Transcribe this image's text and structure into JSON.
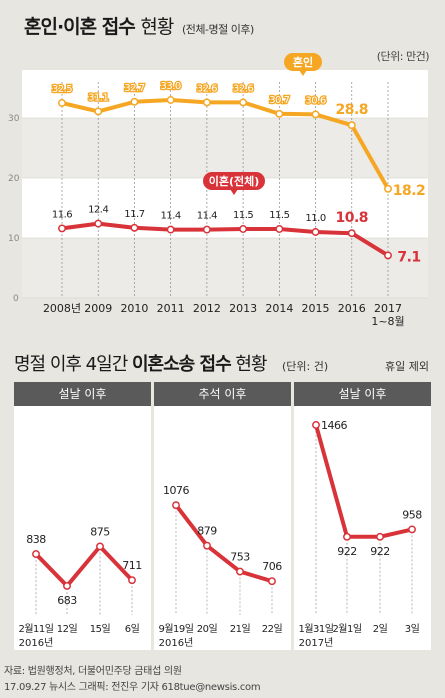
{
  "header": {
    "title_bold": "혼인·이혼 접수",
    "title_light": "현황",
    "subtitle": "(전체-명절 이후)",
    "unit": "(단위: 만건)"
  },
  "chart_data": [
    {
      "type": "line",
      "categories": [
        "2008년",
        "2009",
        "2010",
        "2011",
        "2012",
        "2013",
        "2014",
        "2015",
        "2016",
        "2017 1~8월"
      ],
      "category_lines": [
        [
          "2008년"
        ],
        [
          "2009"
        ],
        [
          "2010"
        ],
        [
          "2011"
        ],
        [
          "2012"
        ],
        [
          "2013"
        ],
        [
          "2014"
        ],
        [
          "2015"
        ],
        [
          "2016"
        ],
        [
          "2017",
          "1~8월"
        ]
      ],
      "ylim": [
        0,
        38
      ],
      "yticks": [
        0,
        10,
        20,
        30
      ],
      "grid": true,
      "series": [
        {
          "name": "혼인",
          "color": "#f5a623",
          "labels": [
            "32.5",
            "31.1",
            "32.7",
            "33.0",
            "32.6",
            "32.6",
            "30.7",
            "30.6",
            "28.8",
            "18.2"
          ],
          "values": [
            32.5,
            31.1,
            32.7,
            33.0,
            32.6,
            32.6,
            30.7,
            30.6,
            28.8,
            18.2
          ]
        },
        {
          "name": "이혼(전체)",
          "color": "#d9333a",
          "labels": [
            "11.6",
            "12.4",
            "11.7",
            "11.4",
            "11.4",
            "11.5",
            "11.5",
            "11.0",
            "10.8",
            "7.1"
          ],
          "values": [
            11.6,
            12.4,
            11.7,
            11.4,
            11.4,
            11.5,
            11.5,
            11.0,
            10.8,
            7.1
          ]
        }
      ]
    },
    {
      "type": "line",
      "panel_title": "설날 이후",
      "categories": [
        "2월11일",
        "12일",
        "15일",
        "6일"
      ],
      "year_note": "2016년",
      "series": [
        {
          "values": [
            838,
            683,
            875,
            711
          ]
        }
      ]
    },
    {
      "type": "line",
      "panel_title": "추석 이후",
      "categories": [
        "9월19일",
        "20일",
        "21일",
        "22일"
      ],
      "year_note": "2016년",
      "series": [
        {
          "values": [
            1076,
            879,
            753,
            706
          ]
        }
      ]
    },
    {
      "type": "line",
      "panel_title": "설날 이후",
      "categories": [
        "1월31일",
        "2월1일",
        "2일",
        "3일"
      ],
      "year_note": "2017년",
      "series": [
        {
          "values": [
            1466,
            922,
            922,
            958
          ]
        }
      ]
    }
  ],
  "section2": {
    "title_prefix": "명절 이후 4일간",
    "title_bold": "이혼소송 접수",
    "title_suffix": "현황",
    "unit": "(단위: 건)",
    "note": "휴일 제외"
  },
  "source": {
    "line1": "자료: 법원행정처, 더불어민주당 금태섭 의원",
    "line2": "17.09.27 뉴시스 그래픽: 전진우 기자 618tue@newsis.com"
  },
  "colors": {
    "marriage": "#f5a623",
    "divorce": "#d9333a",
    "background": "#e8e6e1",
    "panel_header": "#5a5a5a"
  }
}
